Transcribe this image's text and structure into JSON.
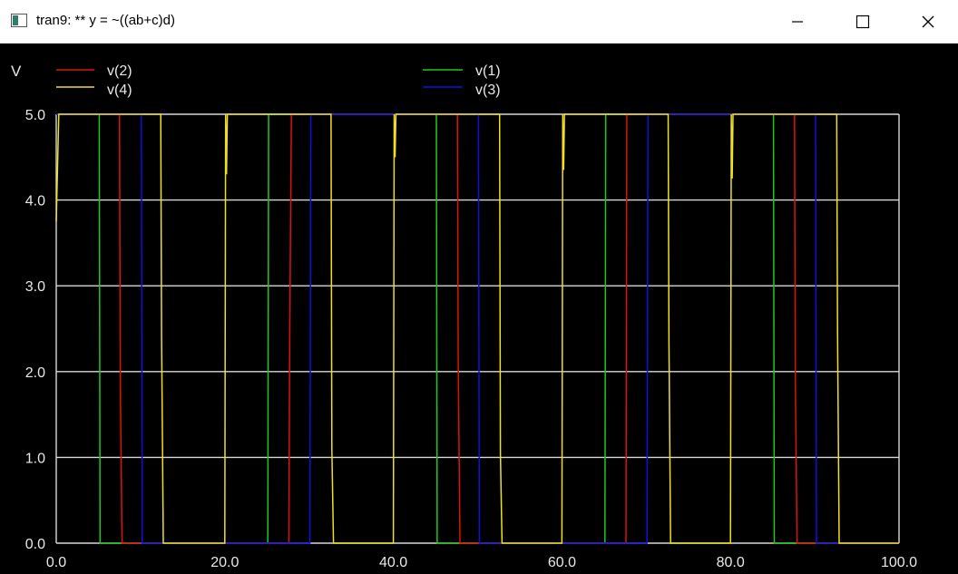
{
  "window": {
    "title": "tran9: ** y = ~((ab+c)d)"
  },
  "colors": {
    "grid": "#d8d8d8",
    "v1": "#1ec81e",
    "v2": "#e01010",
    "v3": "#1010e0",
    "v4": "#f0e020",
    "text": "#e8e8e8"
  },
  "chart_data": {
    "type": "line",
    "title": "tran9: ** y = ~((ab+c)d)",
    "xlabel": "",
    "ylabel": "V",
    "xlim": [
      0,
      100
    ],
    "ylim": [
      0,
      5
    ],
    "xticks": [
      "0.0",
      "20.0",
      "40.0",
      "60.0",
      "80.0",
      "100.0"
    ],
    "yticks": [
      "0.0",
      "1.0",
      "2.0",
      "3.0",
      "4.0",
      "5.0"
    ],
    "grid": true,
    "legend": [
      "v(2)",
      "v(1)",
      "v(4)",
      "v(3)"
    ],
    "series": [
      {
        "name": "v(1)",
        "color": "#1ec81e",
        "points": [
          [
            0,
            5
          ],
          [
            5.1,
            5
          ],
          [
            5.2,
            0
          ],
          [
            25.1,
            0
          ],
          [
            25.2,
            5
          ],
          [
            45.1,
            5
          ],
          [
            45.2,
            0
          ],
          [
            65.1,
            0
          ],
          [
            65.2,
            5
          ],
          [
            85.1,
            5
          ],
          [
            85.2,
            0
          ],
          [
            100,
            0
          ]
        ]
      },
      {
        "name": "v(2)",
        "color": "#e01010",
        "points": [
          [
            0,
            5
          ],
          [
            7.5,
            5
          ],
          [
            7.6,
            1.9
          ],
          [
            7.8,
            0
          ],
          [
            27.6,
            0
          ],
          [
            27.7,
            2.3
          ],
          [
            27.9,
            5
          ],
          [
            47.6,
            5
          ],
          [
            47.7,
            2.1
          ],
          [
            47.9,
            0
          ],
          [
            67.6,
            0
          ],
          [
            67.7,
            5
          ],
          [
            87.6,
            5
          ],
          [
            87.7,
            1.9
          ],
          [
            87.9,
            0
          ],
          [
            100,
            0
          ]
        ]
      },
      {
        "name": "v(3)",
        "color": "#1010e0",
        "points": [
          [
            0,
            5
          ],
          [
            10.1,
            5
          ],
          [
            10.2,
            0
          ],
          [
            30.1,
            0
          ],
          [
            30.2,
            5
          ],
          [
            50.1,
            5
          ],
          [
            50.2,
            0
          ],
          [
            70.1,
            0
          ],
          [
            70.2,
            5
          ],
          [
            90.1,
            5
          ],
          [
            90.2,
            0
          ],
          [
            100,
            0
          ]
        ]
      },
      {
        "name": "v(4)",
        "color": "#f0e020",
        "points": [
          [
            0,
            3.75
          ],
          [
            0.3,
            5
          ],
          [
            12.4,
            5
          ],
          [
            12.5,
            2.45
          ],
          [
            12.7,
            0
          ],
          [
            20.0,
            0
          ],
          [
            20.1,
            5
          ],
          [
            20.2,
            4.3
          ],
          [
            20.3,
            5
          ],
          [
            32.6,
            5
          ],
          [
            32.7,
            1.1
          ],
          [
            32.9,
            0
          ],
          [
            40.0,
            0
          ],
          [
            40.1,
            5
          ],
          [
            40.2,
            4.5
          ],
          [
            40.3,
            5
          ],
          [
            52.6,
            5
          ],
          [
            52.7,
            1.05
          ],
          [
            52.9,
            0
          ],
          [
            60.0,
            0
          ],
          [
            60.1,
            5
          ],
          [
            60.2,
            4.35
          ],
          [
            60.3,
            5
          ],
          [
            72.6,
            5
          ],
          [
            72.7,
            2.35
          ],
          [
            72.9,
            0
          ],
          [
            80.0,
            0
          ],
          [
            80.1,
            5
          ],
          [
            80.2,
            4.25
          ],
          [
            80.3,
            5
          ],
          [
            92.6,
            5
          ],
          [
            92.7,
            2.5
          ],
          [
            92.9,
            0
          ],
          [
            100,
            0
          ]
        ]
      }
    ]
  }
}
